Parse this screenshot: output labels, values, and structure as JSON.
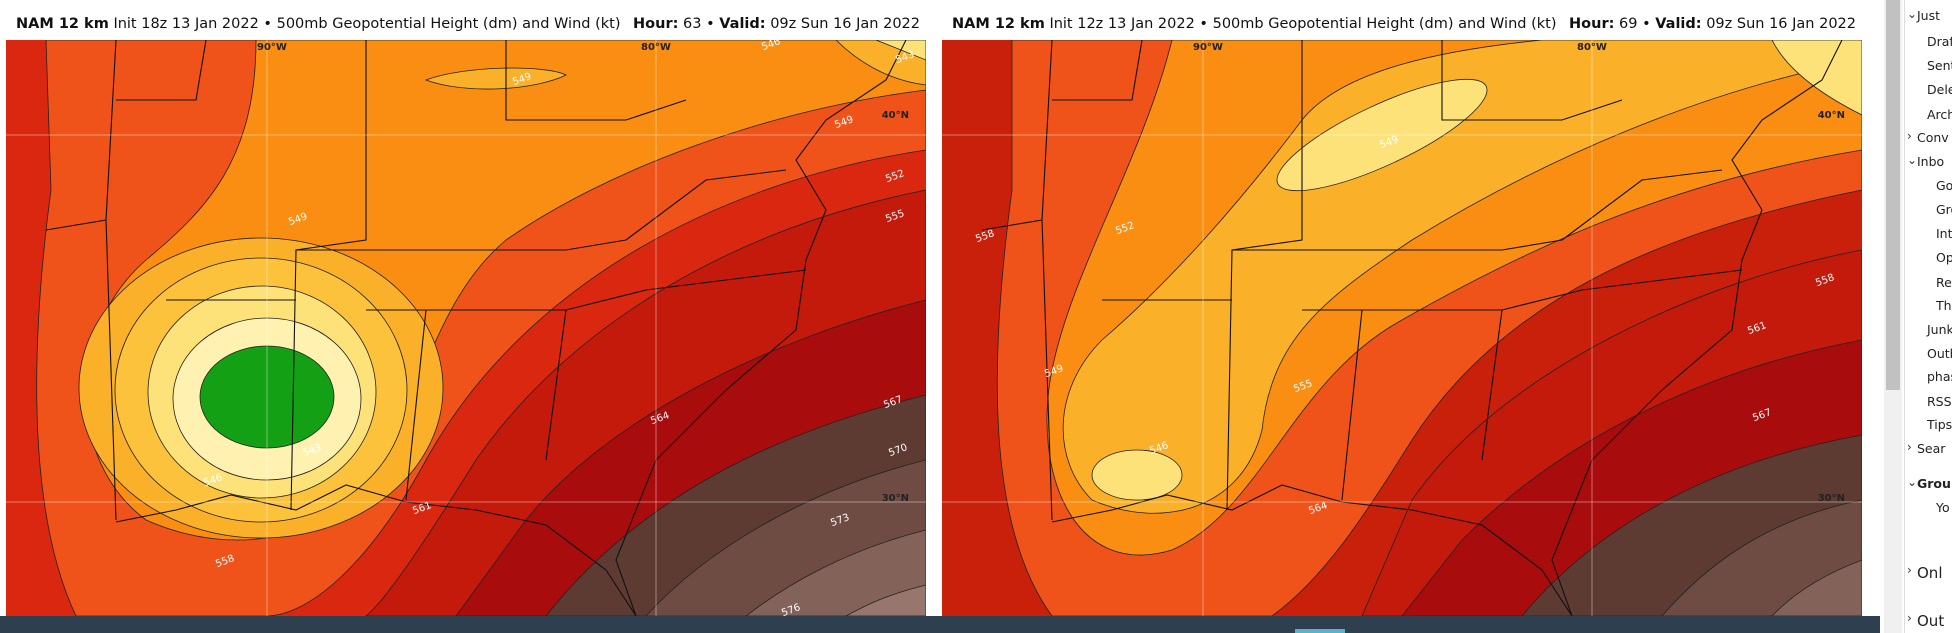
{
  "panels": [
    {
      "model": "NAM 12 km",
      "title": "Init 18z 13 Jan 2022 • 500mb Geopotential Height (dm) and Wind (kt)",
      "hour_label": "Hour:",
      "hour": 63,
      "separator": "•",
      "valid_label": "Valid:",
      "valid": "09z Sun 16 Jan 2022",
      "lon_labels": [
        "90°W",
        "80°W"
      ],
      "lat_labels": [
        "40°N",
        "30°N"
      ],
      "contour_labels": [
        "549",
        "546",
        "543",
        "549",
        "552",
        "555",
        "549",
        "543",
        "546",
        "561",
        "558",
        "564",
        "567",
        "570",
        "573",
        "576"
      ]
    },
    {
      "model": "NAM 12 km",
      "title": "Init 12z 13 Jan 2022 • 500mb Geopotential Height (dm) and Wind (kt)",
      "hour_label": "Hour:",
      "hour": 69,
      "separator": "•",
      "valid_label": "Valid:",
      "valid": "09z Sun 16 Jan 2022",
      "lon_labels": [
        "90°W",
        "80°W"
      ],
      "lat_labels": [
        "40°N",
        "30°N"
      ],
      "contour_labels": [
        "549",
        "552",
        "558",
        "549",
        "546",
        "555",
        "564",
        "558",
        "561",
        "567"
      ]
    }
  ],
  "sidebar": {
    "items": [
      "Just",
      "Draf",
      "Sent",
      "Dele",
      "Arch",
      "Conv",
      "Inbo",
      "Go",
      "Gro",
      "Int",
      "Op",
      "Ref",
      "Th",
      "Junk",
      "Outb",
      "phas",
      "RSS I",
      "Tips",
      "Sear",
      "Grou",
      "Yo",
      "Onl",
      "Out"
    ]
  }
}
